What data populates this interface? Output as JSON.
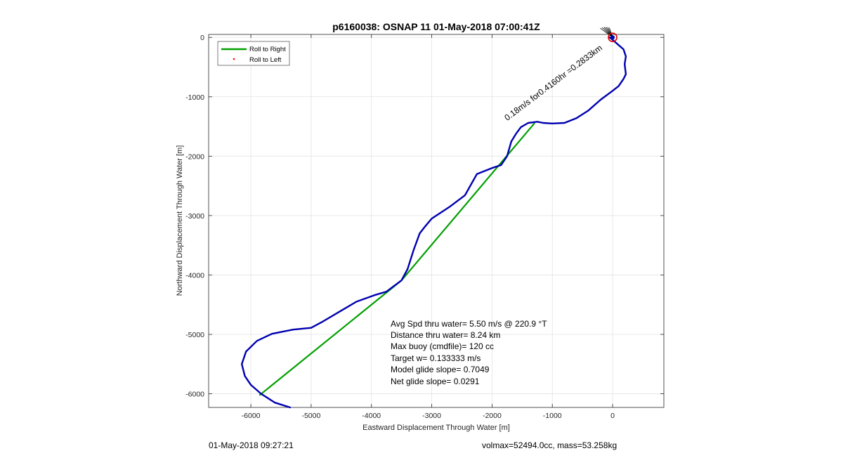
{
  "chart_data": {
    "type": "line",
    "title": "p6160038: OSNAP 11 01-May-2018 07:00:41Z",
    "xlabel": "Eastward Displacement Through Water [m]",
    "ylabel": "Northward Displacement Through Water [m]",
    "xlim": [
      -6700,
      850
    ],
    "ylim": [
      -6230,
      50
    ],
    "xticks": [
      -6000,
      -5000,
      -4000,
      -3000,
      -2000,
      -1000,
      0
    ],
    "yticks": [
      0,
      -1000,
      -2000,
      -3000,
      -4000,
      -5000,
      -6000
    ],
    "grid": true,
    "legend_position": "top-left",
    "series": [
      {
        "name": "Roll to Right",
        "color": "#00a000",
        "x": [
          -5850,
          -3500,
          -1300
        ],
        "y": [
          -6020,
          -4090,
          -1450
        ]
      },
      {
        "name": "Roll to Left",
        "color": "#ff0000",
        "x": [],
        "y": []
      },
      {
        "color": "#0000b0",
        "x": [
          -5350,
          -5600,
          -5830,
          -6000,
          -6100,
          -6150,
          -6080,
          -5900,
          -5650,
          -5300,
          -5000,
          -4800,
          -4500,
          -4250,
          -3950,
          -3750,
          -3500,
          -3400,
          -3300,
          -3200,
          -3100,
          -3000,
          -2700,
          -2450,
          -2250,
          -2000,
          -1850,
          -1750,
          -1680,
          -1600,
          -1520,
          -1400,
          -1250,
          -1150,
          -1000,
          -800,
          -600,
          -400,
          -200,
          0,
          100,
          180,
          220,
          200,
          220,
          180,
          100,
          0,
          -50
        ],
        "y": [
          -6230,
          -6150,
          -6000,
          -5850,
          -5700,
          -5500,
          -5290,
          -5110,
          -4990,
          -4920,
          -4890,
          -4780,
          -4600,
          -4450,
          -4340,
          -4280,
          -4090,
          -3900,
          -3580,
          -3300,
          -3170,
          -3050,
          -2850,
          -2660,
          -2300,
          -2200,
          -2150,
          -2000,
          -1750,
          -1620,
          -1510,
          -1440,
          -1420,
          -1440,
          -1450,
          -1440,
          -1360,
          -1230,
          -1050,
          -900,
          -820,
          -700,
          -620,
          -450,
          -320,
          -200,
          -130,
          -40,
          0
        ]
      }
    ],
    "annotations": {
      "stats": [
        "Avg Spd thru water=  5.50 m/s @ 220.9 °T",
        "Distance thru water=  8.24 km",
        "Max buoy (cmdfile)= 120 cc",
        "Target w= 0.133333 m/s",
        "Model glide slope= 0.7049",
        "Net glide slope= 0.0291"
      ],
      "segment_label": "0.18m/s for0.4160hr =0.2833km"
    }
  },
  "footer": {
    "left": "01-May-2018 09:27:21",
    "right": "volmax=52494.0cc, mass=53.258kg"
  }
}
